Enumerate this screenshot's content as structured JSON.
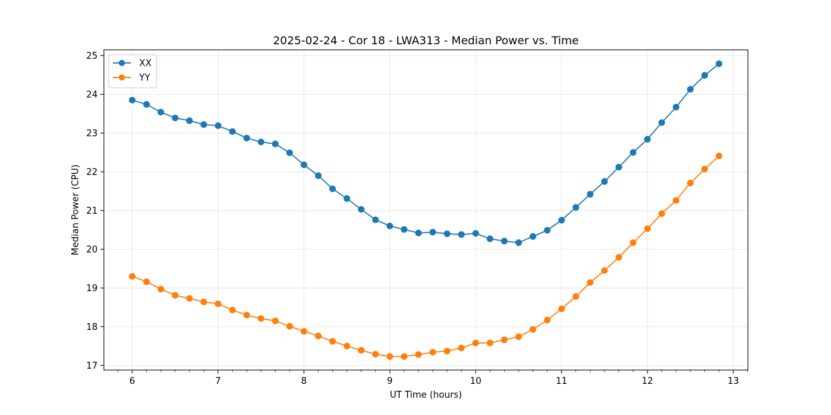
{
  "chart_data": {
    "type": "line",
    "title": "2025-02-24 - Cor 18 - LWA313 - Median Power vs. Time",
    "xlabel": "UT Time (hours)",
    "ylabel": "Median Power (CPU)",
    "xlim": [
      5.67,
      13.17
    ],
    "ylim": [
      16.88,
      25.15
    ],
    "xticks": [
      6,
      7,
      8,
      9,
      10,
      11,
      12,
      13
    ],
    "yticks": [
      17,
      18,
      19,
      20,
      21,
      22,
      23,
      24,
      25
    ],
    "grid": true,
    "legend_position": "top-left",
    "x": [
      6.0,
      6.1667,
      6.3333,
      6.5,
      6.6667,
      6.8333,
      7.0,
      7.1667,
      7.3333,
      7.5,
      7.6667,
      7.8333,
      8.0,
      8.1667,
      8.3333,
      8.5,
      8.6667,
      8.8333,
      9.0,
      9.1667,
      9.3333,
      9.5,
      9.6667,
      9.8333,
      10.0,
      10.1667,
      10.3333,
      10.5,
      10.6667,
      10.8333,
      11.0,
      11.1667,
      11.3333,
      11.5,
      11.6667,
      11.8333,
      12.0,
      12.1667,
      12.3333,
      12.5,
      12.6667,
      12.8333
    ],
    "series": [
      {
        "name": "XX",
        "color": "#1f77b4",
        "values": [
          23.85,
          23.74,
          23.54,
          23.39,
          23.32,
          23.22,
          23.19,
          23.04,
          22.87,
          22.77,
          22.72,
          22.49,
          22.18,
          21.9,
          21.56,
          21.31,
          21.03,
          20.76,
          20.6,
          20.51,
          20.42,
          20.44,
          20.4,
          20.38,
          20.41,
          20.27,
          20.21,
          20.17,
          20.33,
          20.49,
          20.75,
          21.08,
          21.42,
          21.75,
          22.12,
          22.5,
          22.84,
          23.27,
          23.67,
          24.13,
          24.49,
          24.79
        ]
      },
      {
        "name": "YY",
        "color": "#ff7f0e",
        "values": [
          19.3,
          19.16,
          18.97,
          18.81,
          18.73,
          18.64,
          18.59,
          18.43,
          18.3,
          18.21,
          18.15,
          18.01,
          17.88,
          17.76,
          17.62,
          17.5,
          17.39,
          17.29,
          17.23,
          17.23,
          17.28,
          17.34,
          17.37,
          17.45,
          17.58,
          17.58,
          17.66,
          17.74,
          17.93,
          18.17,
          18.46,
          18.78,
          19.14,
          19.45,
          19.79,
          20.17,
          20.53,
          20.92,
          21.26,
          21.71,
          22.07,
          22.41
        ]
      }
    ]
  }
}
